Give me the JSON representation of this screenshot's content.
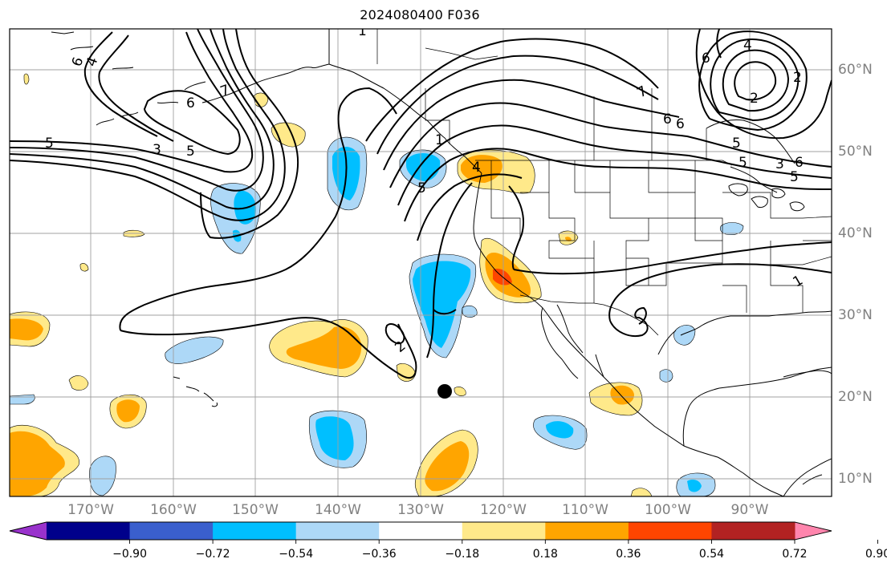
{
  "title": "2024080400 F036",
  "map": {
    "longitude_labels": [
      "170°W",
      "160°W",
      "150°W",
      "140°W",
      "130°W",
      "120°W",
      "110°W",
      "100°W",
      "90°W"
    ],
    "latitude_labels": [
      "60°N",
      "50°N",
      "40°N",
      "30°N",
      "20°N",
      "10°N"
    ],
    "gridlines": true,
    "contour_line_labels": [
      "6",
      "4",
      "7",
      "6",
      "5",
      "3",
      "5",
      "1",
      "5",
      "7",
      "6",
      "6",
      "5",
      "4",
      "2",
      "6",
      "2",
      "5",
      "3",
      "5",
      "6",
      "4",
      "1",
      "2",
      "1"
    ],
    "marker": "black-dot",
    "shaded_field_colors": {
      "negative": [
        "#9932cc",
        "#00008b",
        "#3a5fcd",
        "#00bfff",
        "#add8f7"
      ],
      "neutral": "#ffffff",
      "positive": [
        "#ffe98a",
        "#ffa500",
        "#ff4500",
        "#b22222",
        "#ff85ad"
      ]
    }
  },
  "colorbar": {
    "tick_labels": [
      "−0.90",
      "−0.72",
      "−0.54",
      "−0.36",
      "−0.18",
      "0.18",
      "0.36",
      "0.54",
      "0.72",
      "0.90"
    ],
    "colors": [
      "#9932cc",
      "#00008b",
      "#3a5fcd",
      "#00bfff",
      "#add8f7",
      "#ffffff",
      "#ffe98a",
      "#ffa500",
      "#ff4500",
      "#b22222",
      "#ff85ad"
    ],
    "extend": "both"
  }
}
